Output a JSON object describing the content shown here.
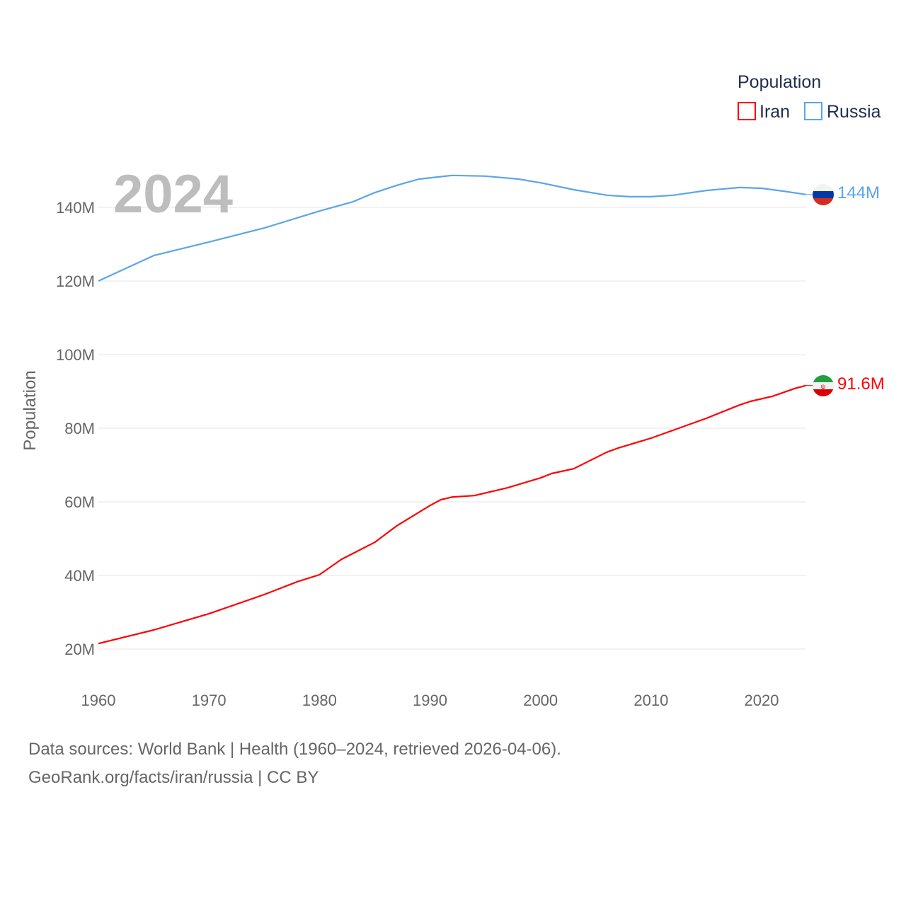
{
  "chart_data": {
    "type": "line",
    "title": "",
    "xlabel": "",
    "ylabel": "Population",
    "xlim": [
      1960,
      2024
    ],
    "ylim": [
      10000000,
      155000000
    ],
    "grid": true,
    "year_label": "2024",
    "legend": {
      "title": "Population",
      "position": "top-right",
      "entries": [
        "Iran",
        "Russia"
      ]
    },
    "y_ticks": [
      {
        "value": 20000000,
        "label": "20M"
      },
      {
        "value": 40000000,
        "label": "40M"
      },
      {
        "value": 60000000,
        "label": "60M"
      },
      {
        "value": 80000000,
        "label": "80M"
      },
      {
        "value": 100000000,
        "label": "100M"
      },
      {
        "value": 120000000,
        "label": "120M"
      },
      {
        "value": 140000000,
        "label": "140M"
      }
    ],
    "x_ticks": [
      {
        "value": 1960,
        "label": "1960"
      },
      {
        "value": 1970,
        "label": "1970"
      },
      {
        "value": 1980,
        "label": "1980"
      },
      {
        "value": 1990,
        "label": "1990"
      },
      {
        "value": 2000,
        "label": "2000"
      },
      {
        "value": 2010,
        "label": "2010"
      },
      {
        "value": 2020,
        "label": "2020"
      }
    ],
    "series": [
      {
        "name": "Iran",
        "color": "#ff0000",
        "end_label": "91.6M",
        "flag": "iran-flag",
        "x": [
          1960,
          1965,
          1970,
          1975,
          1978,
          1980,
          1982,
          1985,
          1987,
          1990,
          1991,
          1992,
          1994,
          1997,
          2000,
          2001,
          2003,
          2006,
          2007,
          2010,
          2015,
          2018,
          2019,
          2021,
          2023,
          2024
        ],
        "y": [
          21.5,
          25.2,
          29.6,
          34.8,
          38.3,
          40.2,
          44.4,
          49.0,
          53.5,
          59.0,
          60.6,
          61.3,
          61.7,
          63.8,
          66.5,
          67.7,
          69.0,
          73.5,
          74.6,
          77.3,
          82.7,
          86.3,
          87.3,
          88.7,
          90.8,
          91.6
        ],
        "unit": "millions"
      },
      {
        "name": "Russia",
        "color": "#5ba4ec",
        "end_label": "144M",
        "flag": "russia-flag",
        "x": [
          1960,
          1965,
          1970,
          1975,
          1980,
          1983,
          1985,
          1987,
          1989,
          1992,
          1995,
          1998,
          2000,
          2003,
          2006,
          2008,
          2010,
          2012,
          2015,
          2018,
          2020,
          2022,
          2024
        ],
        "y": [
          120.0,
          126.9,
          130.6,
          134.4,
          139.0,
          141.5,
          144.0,
          146.0,
          147.7,
          148.7,
          148.5,
          147.7,
          146.7,
          144.8,
          143.3,
          142.9,
          142.9,
          143.3,
          144.6,
          145.4,
          145.2,
          144.4,
          143.5
        ],
        "unit": "millions"
      }
    ]
  },
  "footer": {
    "line1": "Data sources: World Bank | Health (1960–2024, retrieved 2026-04-06).",
    "line2": "GeoRank.org/facts/iran/russia | CC BY"
  }
}
